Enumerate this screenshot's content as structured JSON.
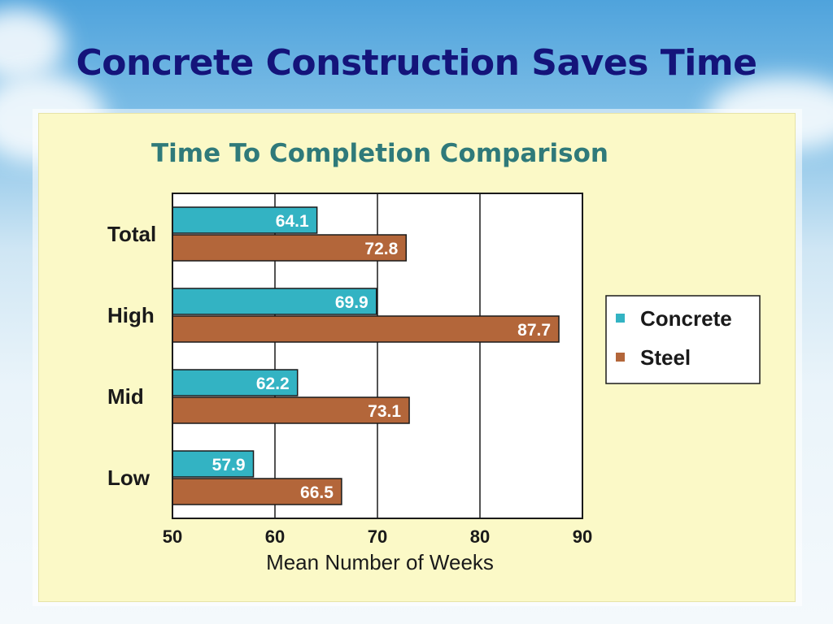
{
  "slide": {
    "title": "Concrete Construction Saves Time"
  },
  "chart_data": {
    "type": "bar",
    "orientation": "horizontal",
    "title": "Time To Completion Comparison",
    "xlabel": "Mean Number of Weeks",
    "ylabel": "",
    "xlim": [
      50,
      90
    ],
    "xticks": [
      "50",
      "60",
      "70",
      "80",
      "90"
    ],
    "grid": true,
    "legend_position": "right",
    "categories": [
      "Total",
      "High",
      "Mid",
      "Low"
    ],
    "series": [
      {
        "name": "Concrete",
        "color": "#33b3c3",
        "values": [
          64.1,
          69.9,
          62.2,
          57.9
        ]
      },
      {
        "name": "Steel",
        "color": "#b3663a",
        "values": [
          72.8,
          87.7,
          73.1,
          66.5
        ]
      }
    ]
  }
}
